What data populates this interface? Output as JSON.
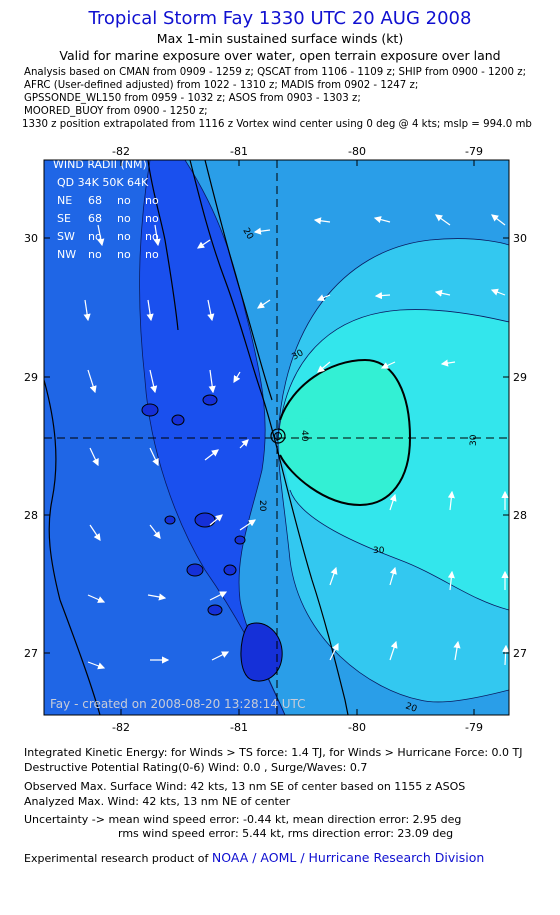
{
  "header": {
    "title": "Tropical Storm Fay 1330 UTC 20 AUG 2008",
    "subtitle": "Max 1-min sustained surface winds (kt)",
    "valid": "Valid for marine exposure over water, open terrain exposure over land"
  },
  "analysis_lines": [
    "Analysis based on  CMAN from 0909 - 1259 z;  QSCAT from 1106 - 1109 z;  SHIP from 0900 - 1200 z;",
    "AFRC (User-defined adjusted) from 1022 - 1310 z;  MADIS from 0902 - 1247 z;",
    "GPSSONDE_WL150 from 0959 - 1032 z;  ASOS from 0903 - 1303 z;",
    "MOORED_BUOY from 0900 - 1250 z;",
    "1330 z position extrapolated from 1116 z Vortex wind center using 0 deg @ 4 kts; mslp = 994.0 mb"
  ],
  "map": {
    "x_ticks": [
      "-82",
      "-81",
      "-80",
      "-79"
    ],
    "y_ticks": [
      "30",
      "29",
      "28",
      "27"
    ],
    "colors": {
      "band_lt34": "#1a50ee",
      "band_10_20": "#1f66e6",
      "band_20_30": "#2a9ee8",
      "band_30_40": "#33c8f0",
      "band_40_50": "#33e6ec",
      "band_50": "#33f0d4",
      "land": "#1530d8"
    },
    "contour_labels": [
      "20",
      "30",
      "20",
      "30",
      "30",
      "40",
      "20"
    ],
    "wind_radii": {
      "heading": "WIND RADII (NM)",
      "columns": "QD 34K 50K 64K",
      "rows": [
        [
          "NE",
          "68",
          "no",
          "no"
        ],
        [
          "SE",
          "68",
          "no",
          "no"
        ],
        [
          "SW",
          "no",
          "no",
          "no"
        ],
        [
          "NW",
          "no",
          "no",
          "no"
        ]
      ]
    },
    "stamp": "Fay - created on 2008-08-20 13:28:14 UTC"
  },
  "footer": {
    "ike": "Integrated Kinetic Energy:  for Winds > TS force: 1.4 TJ,  for Winds > Hurricane Force: 0.0 TJ",
    "dpr": "Destructive Potential Rating(0-6)   Wind: 0.0 , Surge/Waves: 0.7",
    "observed": "Observed Max. Surface Wind: 42 kts, 13 nm SE of center based on 1155 z ASOS",
    "analyzed": "Analyzed Max. Wind: 42 kts, 13 nm NE of center",
    "uncertainty_1": "Uncertainty -> mean wind speed error:  -0.44 kt,   mean direction error: 2.95 deg",
    "uncertainty_2": "rms wind speed error: 5.44 kt,   rms direction error: 23.09 deg",
    "product_prefix": "Experimental research product of",
    "product_link": "NOAA / AOML / Hurricane Research Division"
  }
}
